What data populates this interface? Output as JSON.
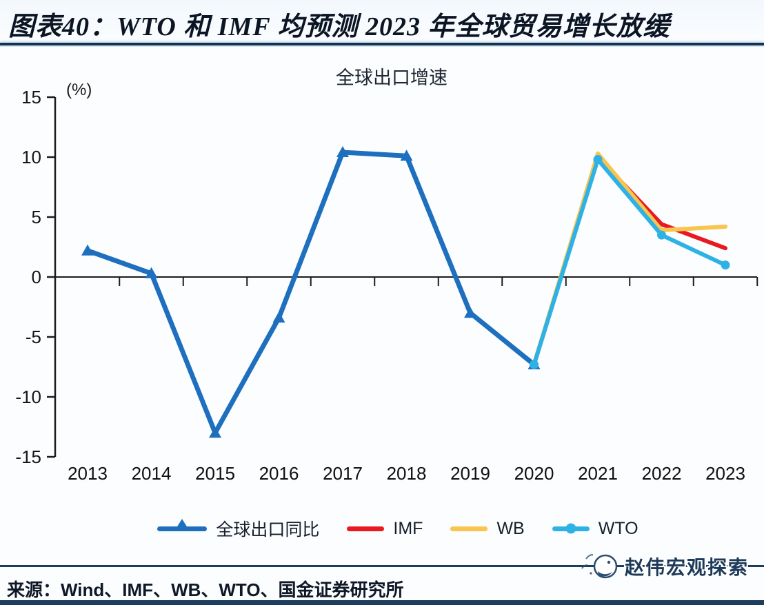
{
  "header": {
    "title": "图表40：WTO 和 IMF 均预测 2023 年全球贸易增长放缓"
  },
  "chart_data": {
    "type": "line",
    "title": "全球出口增速",
    "xlabel": "",
    "ylabel": "(%)",
    "categories": [
      "2013",
      "2014",
      "2015",
      "2016",
      "2017",
      "2018",
      "2019",
      "2020",
      "2021",
      "2022",
      "2023"
    ],
    "yticks": [
      15,
      10,
      5,
      0,
      -5,
      -10,
      -15
    ],
    "ylim": [
      -15,
      15
    ],
    "grid": false,
    "legend_position": "bottom",
    "series": [
      {
        "name": "全球出口同比",
        "color": "#1E6FBE",
        "marker": "triangle",
        "width": 7,
        "x": [
          2013,
          2014,
          2015,
          2016,
          2017,
          2018,
          2019,
          2020
        ],
        "values": [
          2.2,
          0.3,
          -13.0,
          -3.4,
          10.4,
          10.1,
          -3.0,
          -7.3
        ]
      },
      {
        "name": "IMF",
        "color": "#E8191F",
        "marker": "none",
        "width": 6,
        "x": [
          2020,
          2021,
          2022,
          2023
        ],
        "values": [
          -7.3,
          10.0,
          4.4,
          2.4
        ]
      },
      {
        "name": "WB",
        "color": "#F8C54F",
        "marker": "none",
        "width": 6,
        "x": [
          2020,
          2021,
          2022,
          2023
        ],
        "values": [
          -7.3,
          10.3,
          3.9,
          4.2
        ]
      },
      {
        "name": "WTO",
        "color": "#2EB2E6",
        "marker": "circle",
        "width": 6,
        "x": [
          2020,
          2021,
          2022,
          2023
        ],
        "values": [
          -7.3,
          9.8,
          3.5,
          1.0
        ]
      }
    ]
  },
  "footer": {
    "source": "来源：Wind、IMF、WB、WTO、国金证券研究所",
    "watermark": "赵伟宏观探索"
  },
  "colors": {
    "axis": "#1c1c1c",
    "rule_navy": "#1d3d5e",
    "title_text": "#0b1524"
  }
}
